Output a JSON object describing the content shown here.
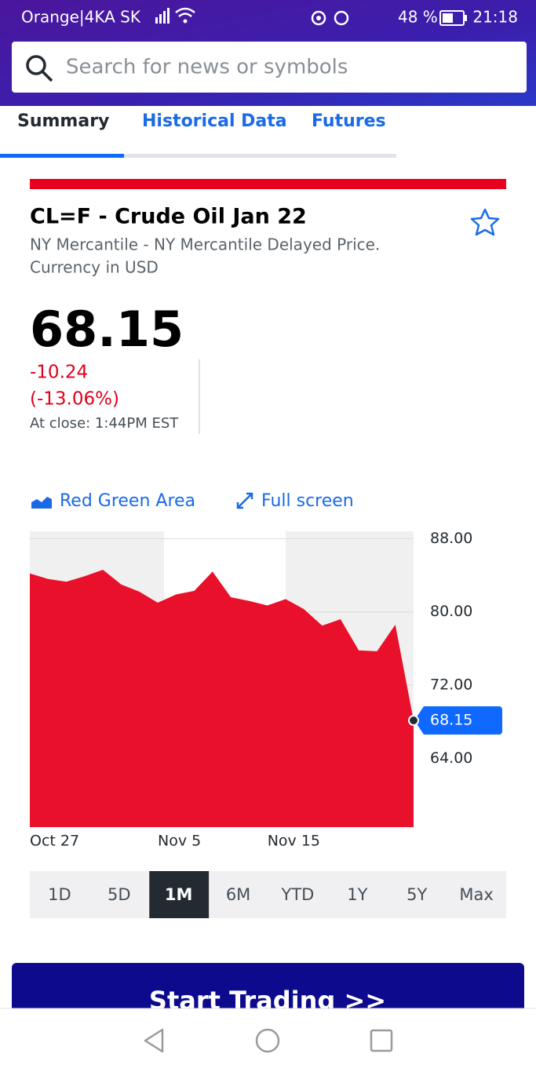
{
  "status_bar": {
    "carrier": "Orange|4KA SK",
    "battery": "48 %",
    "time": "21:18"
  },
  "search": {
    "placeholder": "Search for news or symbols"
  },
  "tabs": [
    "Summary",
    "Historical Data",
    "Futures"
  ],
  "quote": {
    "title": "CL=F - Crude Oil Jan 22",
    "exchange_line1": "NY Mercantile - NY Mercantile Delayed Price.",
    "exchange_line2": "Currency in USD",
    "price": "68.15",
    "change": "-10.24",
    "change_percent": "(-13.06%)",
    "close_label": "At close: 1:44PM EST"
  },
  "chart_controls": {
    "chart_type": "Red Green Area",
    "fullscreen": "Full screen"
  },
  "chart_data": {
    "type": "area",
    "color": "#e8102a",
    "categories": [
      "Oct 27",
      null,
      null,
      null,
      null,
      null,
      null,
      "Nov 5",
      null,
      null,
      null,
      null,
      null,
      "Nov 15",
      null,
      null,
      null,
      null,
      null,
      null,
      null,
      null
    ],
    "values": [
      84.2,
      83.6,
      83.3,
      83.9,
      84.6,
      83.0,
      82.2,
      81.0,
      81.9,
      82.3,
      84.4,
      81.6,
      81.2,
      80.7,
      81.4,
      80.3,
      78.5,
      79.2,
      75.8,
      75.7,
      78.6,
      68.15
    ],
    "ylim": [
      56.5,
      88.8
    ],
    "yticks": [
      {
        "value": 88,
        "label": "88.00"
      },
      {
        "value": 80,
        "label": "80.00"
      },
      {
        "value": 72,
        "label": "72.00"
      },
      {
        "value": 64,
        "label": "64.00"
      }
    ],
    "last_price": 68.15
  },
  "range_selector": {
    "options": [
      "1D",
      "5D",
      "1M",
      "6M",
      "YTD",
      "1Y",
      "5Y",
      "Max"
    ],
    "selected": 2
  },
  "cta": "Start Trading >>"
}
